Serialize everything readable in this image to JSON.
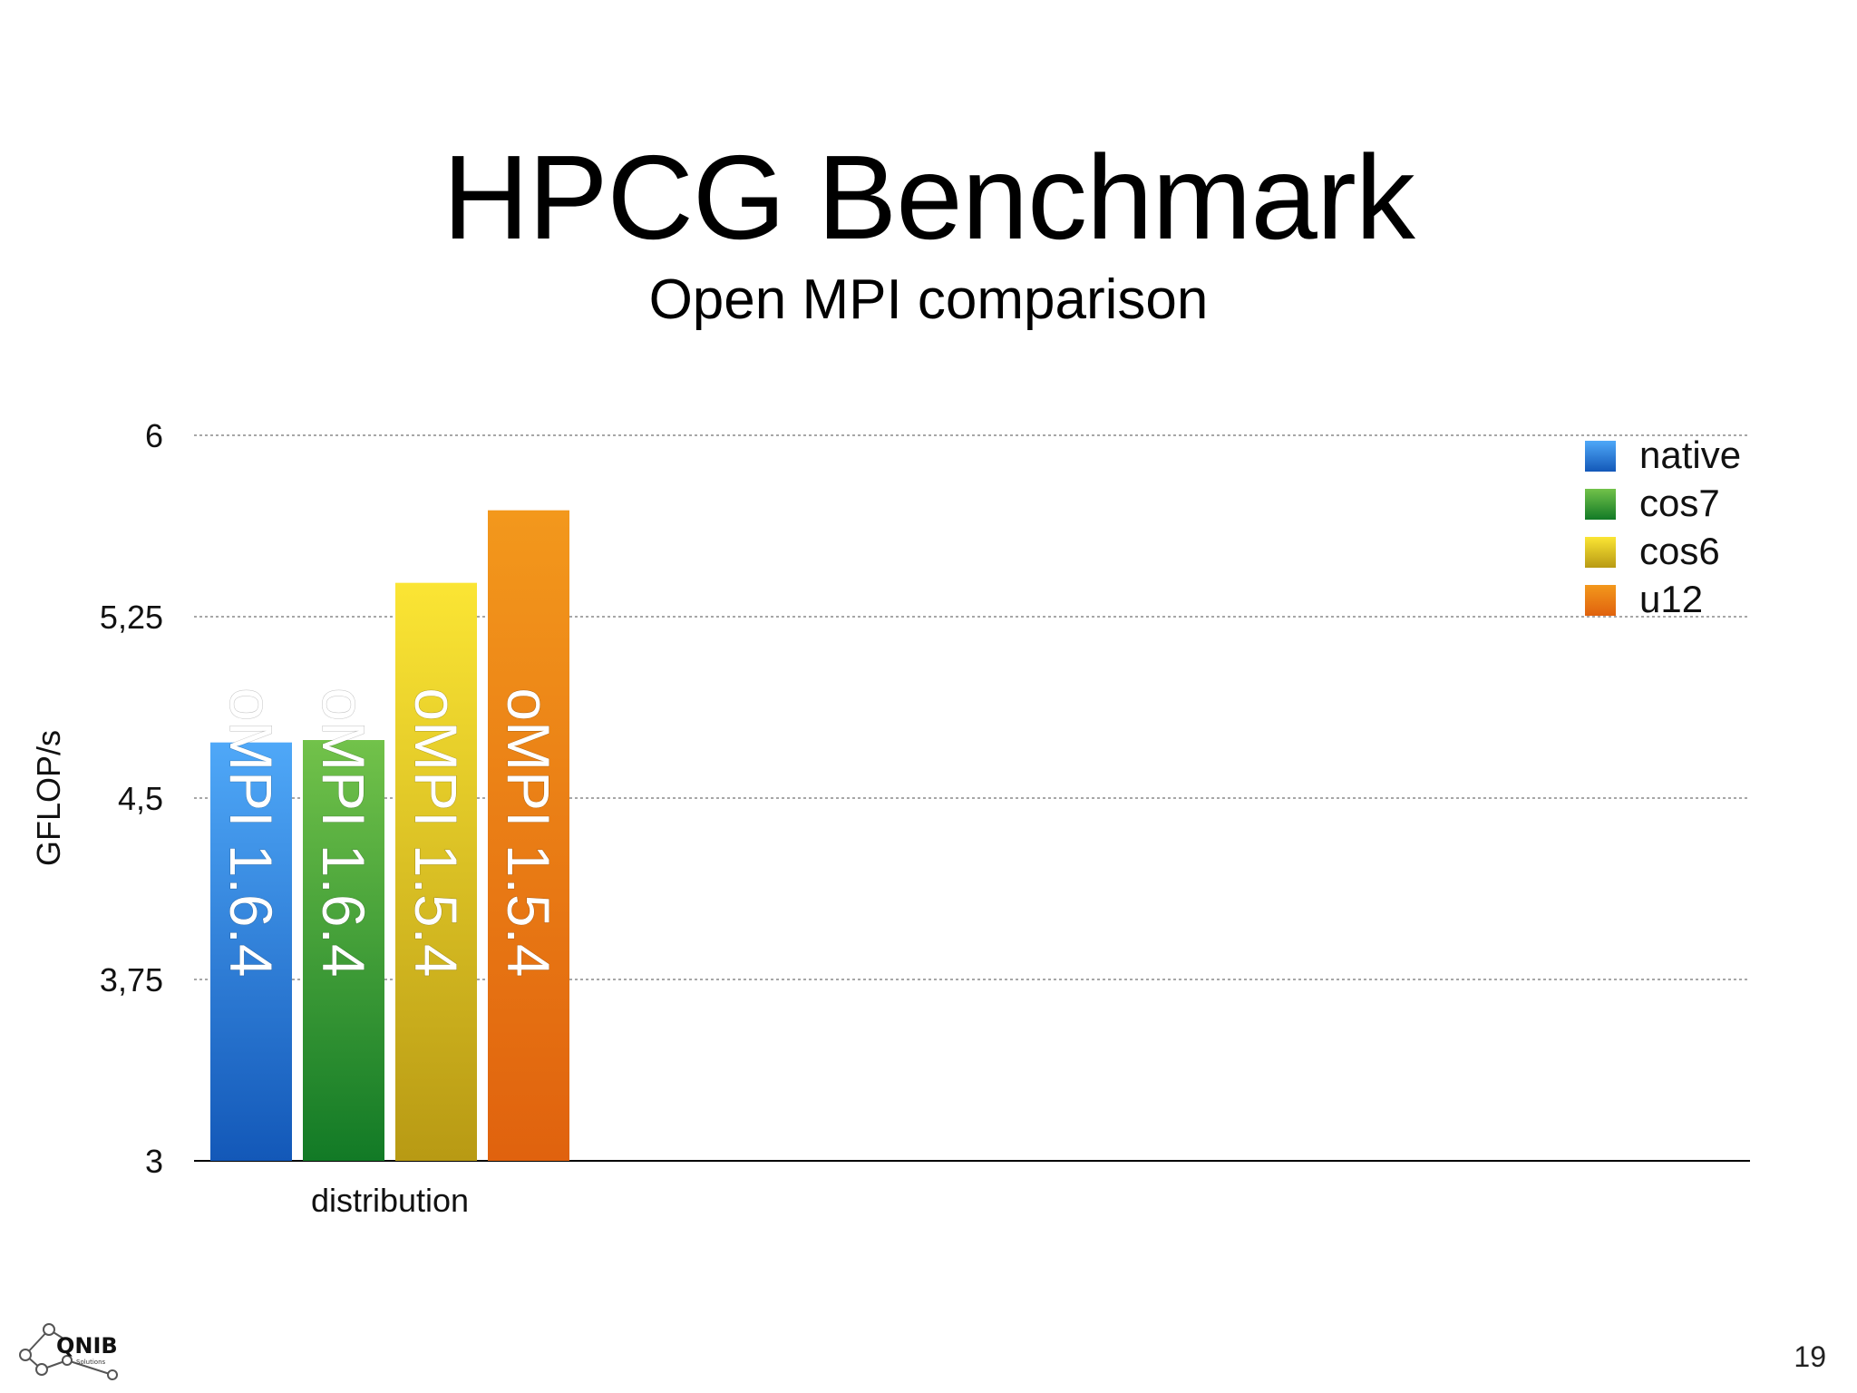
{
  "slide": {
    "title": "HPCG Benchmark",
    "subtitle": "Open MPI comparison",
    "page_number": "19",
    "logo_text": "QNIB",
    "logo_subtext": "Solutions"
  },
  "chart_data": {
    "type": "bar",
    "title": "",
    "xlabel": "distribution",
    "ylabel": "GFLOP/s",
    "ylim": [
      3,
      6
    ],
    "yticks": [
      3,
      3.75,
      4.5,
      5.25,
      6
    ],
    "ytick_labels": [
      "3",
      "3,75",
      "4,5",
      "5,25",
      "6"
    ],
    "grid": true,
    "legend_position": "top-right",
    "categories": [
      "distribution"
    ],
    "series": [
      {
        "name": "native",
        "values": [
          4.73
        ],
        "bar_label": "oMPI 1.6.4",
        "color": "#2f86e0"
      },
      {
        "name": "cos7",
        "values": [
          4.74
        ],
        "bar_label": "oMPI 1.6.4",
        "color": "#2fa03a"
      },
      {
        "name": "cos6",
        "values": [
          5.39
        ],
        "bar_label": "oMPI 1.5.4",
        "color": "#f0d020"
      },
      {
        "name": "u12",
        "values": [
          5.69
        ],
        "bar_label": "oMPI 1.5.4",
        "color": "#ee8418"
      }
    ]
  }
}
